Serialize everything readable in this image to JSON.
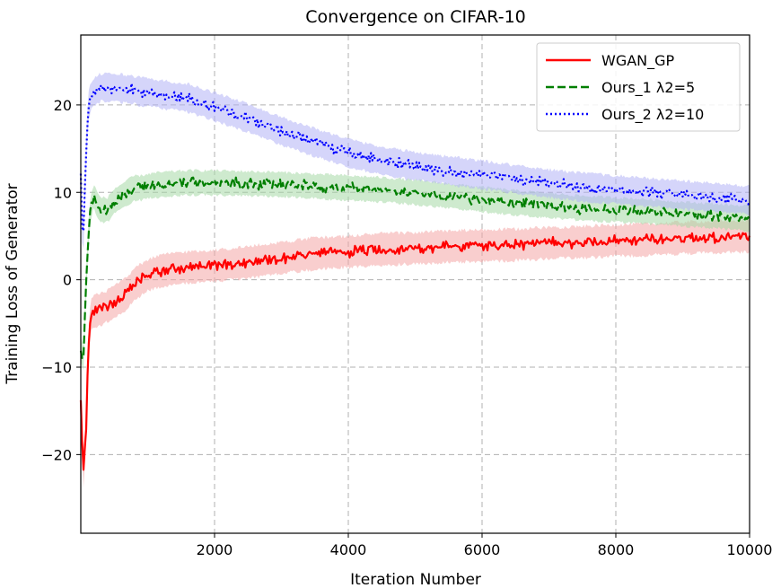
{
  "chart_data": {
    "type": "line",
    "title": "Convergence on CIFAR-10",
    "xlabel": "Iteration Number",
    "ylabel": "Training Loss of Generator",
    "xlim": [
      0,
      10000
    ],
    "ylim": [
      -29,
      28
    ],
    "xticks": [
      2000,
      4000,
      6000,
      8000,
      10000
    ],
    "xtick_labels": [
      "2000",
      "4000",
      "6000",
      "8000",
      "10000"
    ],
    "yticks": [
      -20,
      -10,
      0,
      10,
      20
    ],
    "ytick_labels": [
      "−20",
      "−10",
      "0",
      "10",
      "20"
    ],
    "grid": true,
    "legend_position": "top-right",
    "series": [
      {
        "name": "WGAN_GP",
        "color": "#ff0000",
        "style": "solid",
        "band_color": "#f4a6a6",
        "x": [
          0,
          40,
          80,
          110,
          150,
          200,
          300,
          400,
          500,
          600,
          700,
          800,
          900,
          1000,
          1100,
          1200,
          1400,
          1600,
          1800,
          2000,
          2500,
          3000,
          3500,
          4000,
          4500,
          5000,
          5500,
          6000,
          6500,
          7000,
          7500,
          8000,
          8500,
          9000,
          9500,
          10000
        ],
        "values": [
          -14,
          -22,
          -17,
          -8,
          -4,
          -3.6,
          -3.4,
          -3.0,
          -2.5,
          -2.0,
          -1.5,
          -0.5,
          0,
          0.5,
          0.8,
          1.0,
          1.3,
          1.4,
          1.5,
          1.6,
          2.0,
          2.5,
          3.0,
          3.2,
          3.5,
          3.6,
          3.8,
          3.9,
          4.0,
          4.2,
          4.3,
          4.5,
          4.6,
          4.8,
          4.9,
          5.0
        ],
        "band": 1.8
      },
      {
        "name": "Ours_1 λ2=5",
        "color": "#007f00",
        "style": "dashed",
        "band_color": "#a6d8a6",
        "x": [
          0,
          40,
          70,
          100,
          130,
          170,
          200,
          250,
          300,
          400,
          500,
          600,
          700,
          800,
          900,
          1000,
          1200,
          1400,
          1600,
          1800,
          2000,
          2500,
          3000,
          3500,
          4000,
          4500,
          5000,
          5500,
          6000,
          6500,
          7000,
          7500,
          8000,
          8500,
          9000,
          9500,
          10000
        ],
        "values": [
          -8,
          -9,
          -2,
          3,
          7,
          9,
          9.5,
          8.5,
          8,
          8,
          9,
          9.5,
          10,
          10.5,
          10.5,
          10.7,
          10.9,
          11.0,
          11.1,
          11.1,
          11.1,
          11.0,
          10.9,
          10.7,
          10.5,
          10.3,
          10.0,
          9.6,
          9.2,
          8.8,
          8.5,
          8.2,
          8.0,
          7.8,
          7.5,
          7.3,
          7.0
        ],
        "band": 1.4
      },
      {
        "name": "Ours_2 λ2=10",
        "color": "#0000ff",
        "style": "dotted",
        "band_color": "#b3b3f5",
        "x": [
          0,
          30,
          60,
          90,
          120,
          150,
          200,
          300,
          400,
          500,
          600,
          700,
          800,
          900,
          1000,
          1200,
          1400,
          1600,
          1800,
          2000,
          2500,
          3000,
          3500,
          4000,
          4500,
          5000,
          5500,
          6000,
          6500,
          7000,
          7500,
          8000,
          8500,
          9000,
          9500,
          10000
        ],
        "values": [
          12,
          3,
          10,
          17,
          20,
          21,
          21.5,
          22.0,
          22.0,
          22.0,
          21.9,
          21.8,
          21.7,
          21.5,
          21.5,
          21.2,
          21.0,
          20.8,
          20.3,
          19.8,
          18.5,
          17.0,
          15.7,
          14.5,
          13.6,
          13.0,
          12.5,
          12.0,
          11.5,
          11.0,
          10.6,
          10.3,
          10.0,
          9.7,
          9.4,
          9.1
        ],
        "band": 1.6
      }
    ]
  }
}
